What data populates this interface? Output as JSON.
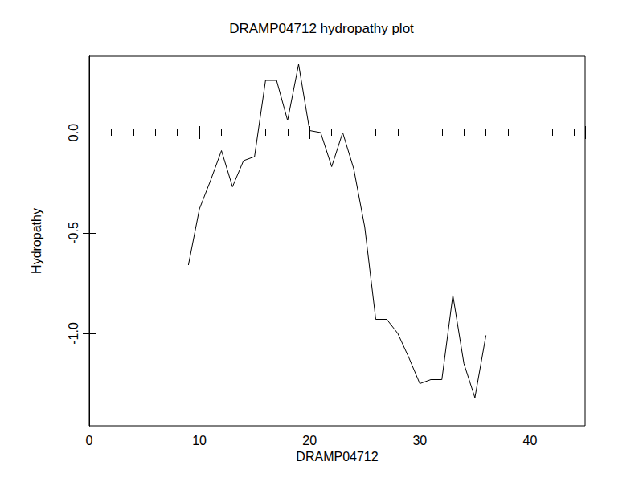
{
  "chart_data": {
    "type": "line",
    "title": "DRAMP04712 hydropathy plot",
    "x_label": "DRAMP04712",
    "y_label": "Hydropathy",
    "x": [
      9,
      10,
      11,
      12,
      13,
      14,
      15,
      16,
      17,
      18,
      19,
      20,
      21,
      22,
      23,
      24,
      25,
      26,
      27,
      28,
      29,
      30,
      31,
      32,
      33,
      34,
      35,
      36
    ],
    "values": [
      -0.66,
      -0.38,
      -0.24,
      -0.09,
      -0.27,
      -0.14,
      -0.12,
      0.26,
      0.26,
      0.06,
      0.34,
      0.01,
      0.0,
      -0.17,
      0.0,
      -0.18,
      -0.47,
      -0.93,
      -0.93,
      -1.0,
      -1.12,
      -1.25,
      -1.23,
      -1.23,
      -0.81,
      -1.15,
      -1.32,
      -1.01
    ],
    "color": "#000000",
    "xlim": [
      0,
      45
    ],
    "xticks": [
      0,
      10,
      20,
      30,
      40
    ],
    "ylim": [
      -1.46,
      0.38
    ],
    "yticks": [
      {
        "value": -1,
        "label": "-1.0"
      },
      {
        "value": -0.5,
        "label": "-0.5"
      },
      {
        "value": 0,
        "label": "0.0"
      }
    ],
    "grid": false,
    "marker": "none",
    "line_style": "solid"
  }
}
